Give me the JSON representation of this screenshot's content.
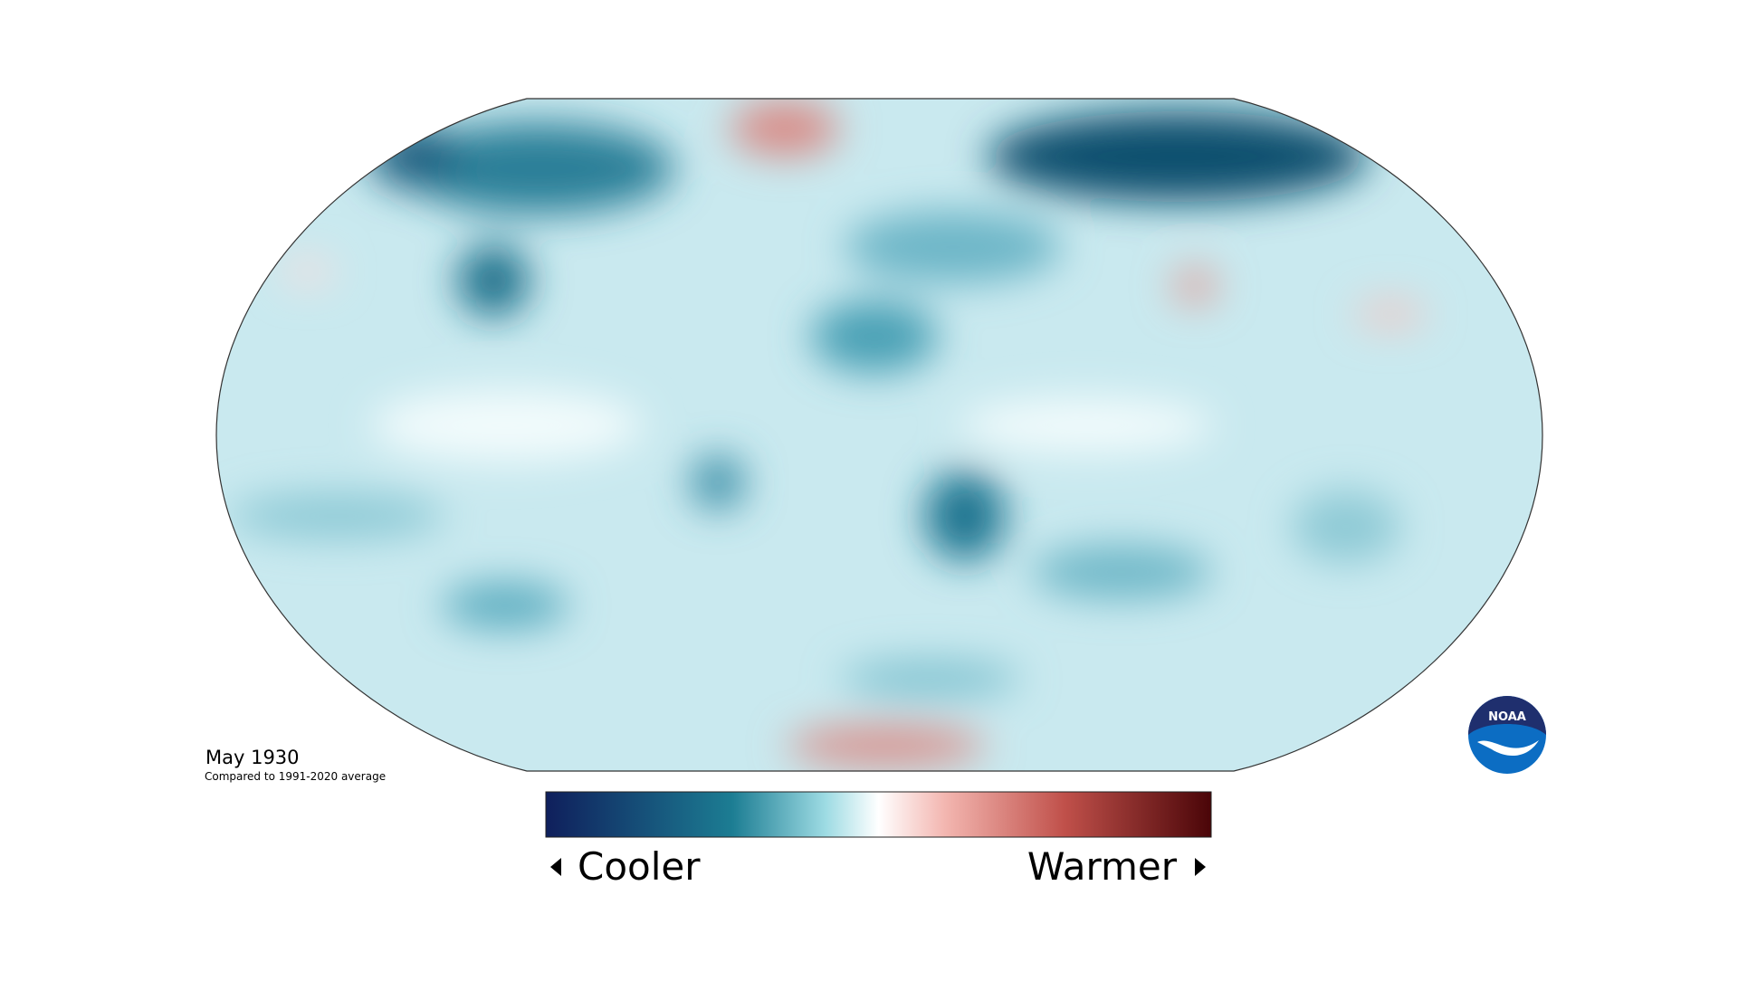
{
  "map": {
    "title": "May 1930",
    "subtitle": "Compared to 1991-2020 average"
  },
  "legend": {
    "left_label": "Cooler",
    "right_label": "Warmer"
  },
  "logo": {
    "text": "NOAA"
  }
}
